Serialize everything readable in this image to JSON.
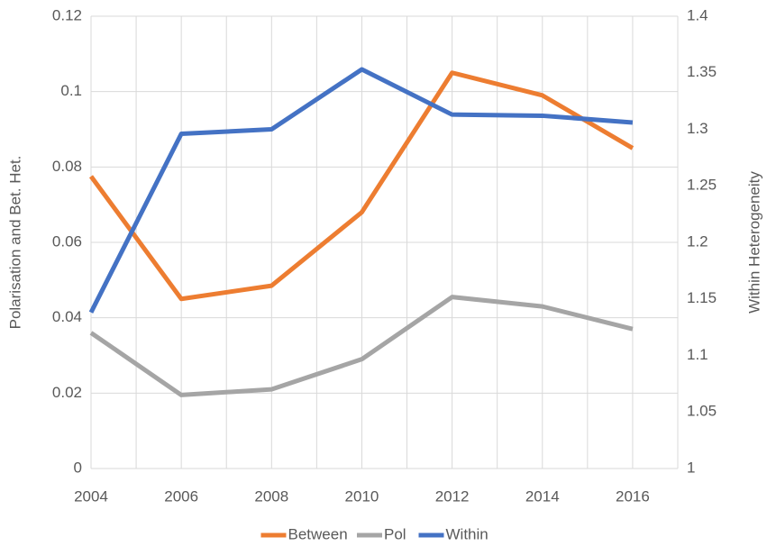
{
  "chart_data": {
    "type": "line",
    "x": [
      2004,
      2006,
      2008,
      2010,
      2012,
      2014,
      2016
    ],
    "xlim": [
      2004,
      2017
    ],
    "xticks": [
      2004,
      2006,
      2008,
      2010,
      2012,
      2014,
      2016
    ],
    "ylim": [
      0,
      0.12
    ],
    "yticks": [
      0,
      0.02,
      0.04,
      0.06,
      0.08,
      0.1,
      0.12
    ],
    "y2lim": [
      1,
      1.4
    ],
    "y2ticks": [
      1,
      1.05,
      1.1,
      1.15,
      1.2,
      1.25,
      1.3,
      1.35,
      1.4
    ],
    "ylabel": "Polarisation and Bet. Het.",
    "y2label": "Within Heterogeneity",
    "grid": true,
    "legend": "bottom",
    "series": [
      {
        "name": "Between",
        "color": "#ed7d31",
        "values": [
          0.0775,
          0.045,
          0.0485,
          0.068,
          0.105,
          0.099,
          0.085
        ]
      },
      {
        "name": "Pol",
        "color": "#a5a5a5",
        "values": [
          0.036,
          0.0195,
          0.021,
          0.029,
          0.0455,
          0.043,
          0.037
        ]
      },
      {
        "name": "Within",
        "color": "#4472c4",
        "axis": "y2",
        "values": [
          1.138,
          1.296,
          1.3,
          1.353,
          1.313,
          1.312,
          1.306
        ]
      }
    ]
  }
}
